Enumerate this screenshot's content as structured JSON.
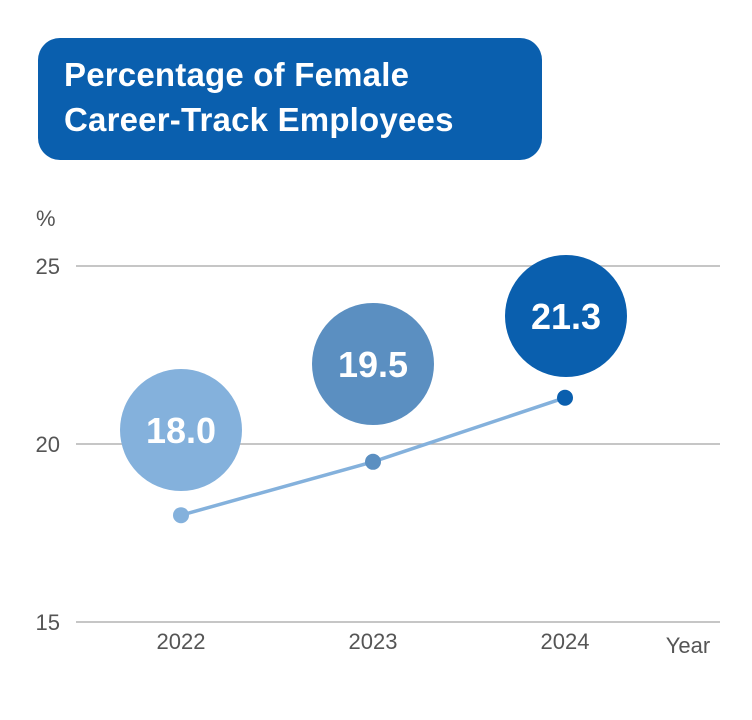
{
  "title": {
    "line1": "Percentage of Female",
    "line2": "Career-Track Employees"
  },
  "colors": {
    "title_bg": "#0a5fae",
    "gridline": "#b3b3b3",
    "line": "#84b1dc",
    "point_colors": [
      "#84b1dc",
      "#5b8fc1",
      "#0a5fae"
    ]
  },
  "chart_data": {
    "type": "line",
    "title": "Percentage of Female Career-Track Employees",
    "xlabel": "Year",
    "ylabel": "%",
    "categories": [
      "2022",
      "2023",
      "2024"
    ],
    "series": [
      {
        "values": [
          18.0,
          19.5,
          21.3
        ]
      }
    ],
    "data_labels": [
      "18.0",
      "19.5",
      "21.3"
    ],
    "yticks": [
      "15",
      "20",
      "25"
    ],
    "ylim": [
      15,
      25
    ],
    "grid": true,
    "legend": "none"
  }
}
